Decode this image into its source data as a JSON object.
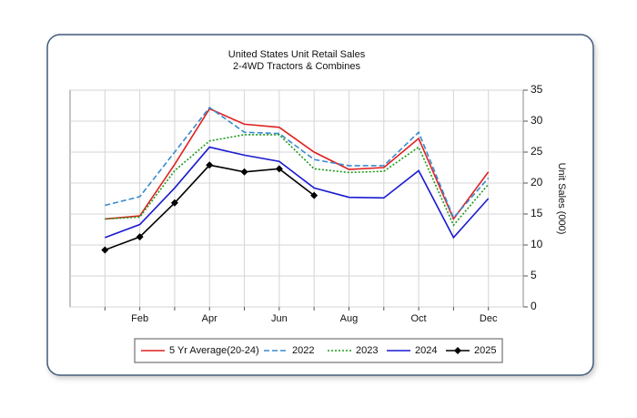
{
  "chart_data": {
    "type": "line",
    "title": "United States Unit Retail Sales",
    "subtitle": "2-4WD Tractors & Combines",
    "y_label": "Unit Sales (000)",
    "categories": [
      null,
      "Feb",
      null,
      "Apr",
      null,
      "Jun",
      null,
      "Aug",
      null,
      "Oct",
      null,
      "Dec"
    ],
    "ylim": [
      0,
      35
    ],
    "yticks": [
      0,
      5,
      10,
      15,
      20,
      25,
      30,
      35
    ],
    "grid": true,
    "series": [
      {
        "name": "5 Yr Average(20-24)",
        "color": "#e02020",
        "dash": "solid",
        "values": [
          14.2,
          14.7,
          23,
          32,
          29.5,
          29,
          25,
          22.2,
          22.5,
          27.2,
          14.2,
          21.8
        ]
      },
      {
        "name": "2022",
        "color": "#3a8ad0",
        "dash": "dashed",
        "values": [
          16.4,
          17.8,
          25,
          32.2,
          28.2,
          28,
          23.8,
          22.8,
          22.8,
          28.2,
          14.4,
          20.8
        ]
      },
      {
        "name": "2023",
        "color": "#1a9a1a",
        "dash": "dotted",
        "values": [
          14.2,
          14.5,
          22,
          26.8,
          27.8,
          27.8,
          22.3,
          21.7,
          21.9,
          25.8,
          13.2,
          19.8
        ]
      },
      {
        "name": "2024",
        "color": "#1a1ad0",
        "dash": "solid",
        "values": [
          11.2,
          13.3,
          19.2,
          25.8,
          24.5,
          23.5,
          19.2,
          17.7,
          17.6,
          22,
          11.2,
          17.5
        ]
      },
      {
        "name": "2025",
        "color": "#000000",
        "dash": "solid",
        "marker": "diamond",
        "values": [
          9.2,
          11.3,
          16.8,
          22.9,
          21.8,
          22.3,
          18,
          null,
          null,
          null,
          null,
          null
        ]
      }
    ]
  }
}
